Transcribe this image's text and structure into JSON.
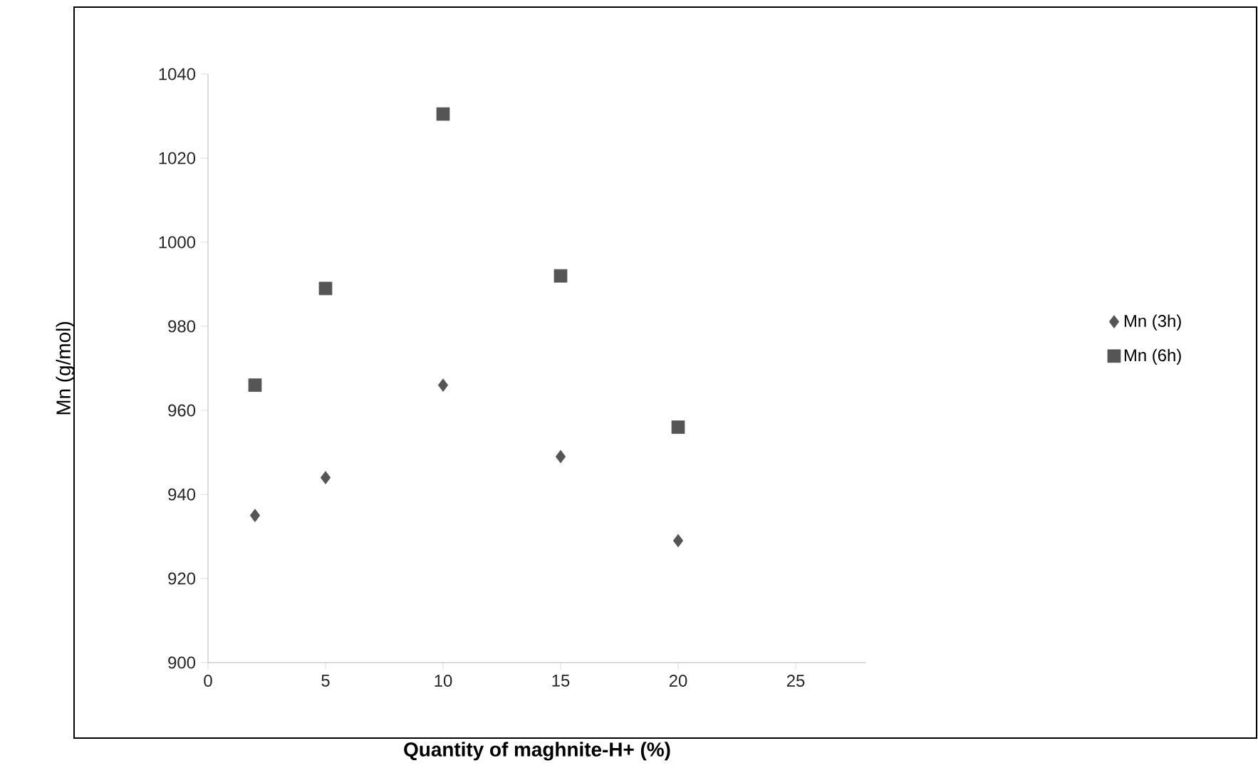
{
  "chart_data": {
    "type": "scatter",
    "xlabel": "Quantity of maghnite-H+ (%)",
    "ylabel": "Mn (g/mol)",
    "x": [
      2,
      5,
      10,
      15,
      20
    ],
    "series": [
      {
        "name": "Mn (3h)",
        "color": "#555555",
        "marker": "diamond",
        "values": [
          935,
          944,
          966,
          949,
          929
        ]
      },
      {
        "name": "Mn (6h)",
        "color": "#555555",
        "marker": "square",
        "values": [
          966,
          989,
          1030.5,
          992,
          956
        ]
      }
    ],
    "xlim": [
      0,
      28
    ],
    "xticks": [
      0,
      5,
      10,
      15,
      20,
      25
    ],
    "ylim": [
      900,
      1040
    ],
    "yticks": [
      900,
      920,
      940,
      960,
      980,
      1000,
      1020,
      1040
    ],
    "grid": false,
    "legend": "right"
  }
}
